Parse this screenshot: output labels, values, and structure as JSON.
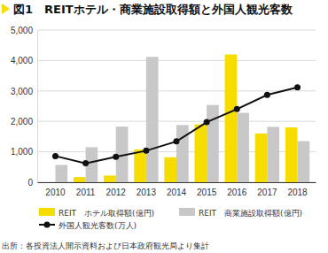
{
  "chart_data": {
    "type": "bar",
    "title": "図1　REITホテル・商業施設取得額と外国人観光客数",
    "categories": [
      "2010",
      "2011",
      "2012",
      "2013",
      "2014",
      "2015",
      "2016",
      "2017",
      "2018"
    ],
    "series": [
      {
        "name": "REIT　ホテル取得額(億円)",
        "color": "#f7dc00",
        "type": "bar",
        "values": [
          0,
          170,
          220,
          1080,
          820,
          1900,
          4200,
          1600,
          1800
        ]
      },
      {
        "name": "REIT　商業施設取得額(億円)",
        "color": "#c8c8c8",
        "type": "bar",
        "values": [
          570,
          1150,
          1830,
          4120,
          1880,
          2540,
          2280,
          1820,
          1350
        ]
      },
      {
        "name": "外国人観光客数(万人)",
        "color": "#111111",
        "type": "line",
        "marker": "circle",
        "values": [
          861,
          622,
          836,
          1036,
          1341,
          1974,
          2404,
          2869,
          3119
        ]
      }
    ],
    "ylim": [
      0,
      5000
    ],
    "yticks": [
      0,
      {
        "value": 1000,
        "label": "1,000"
      },
      {
        "value": 2000,
        "label": "2,000"
      },
      {
        "value": 3000,
        "label": "3,000"
      },
      {
        "value": 4000,
        "label": "4,000"
      },
      {
        "value": 5000,
        "label": "5,000"
      }
    ],
    "grid": true,
    "legend": "bottom",
    "annotations": [
      "出所：各投資法人開示資料および日本政府観光局より集計"
    ]
  }
}
